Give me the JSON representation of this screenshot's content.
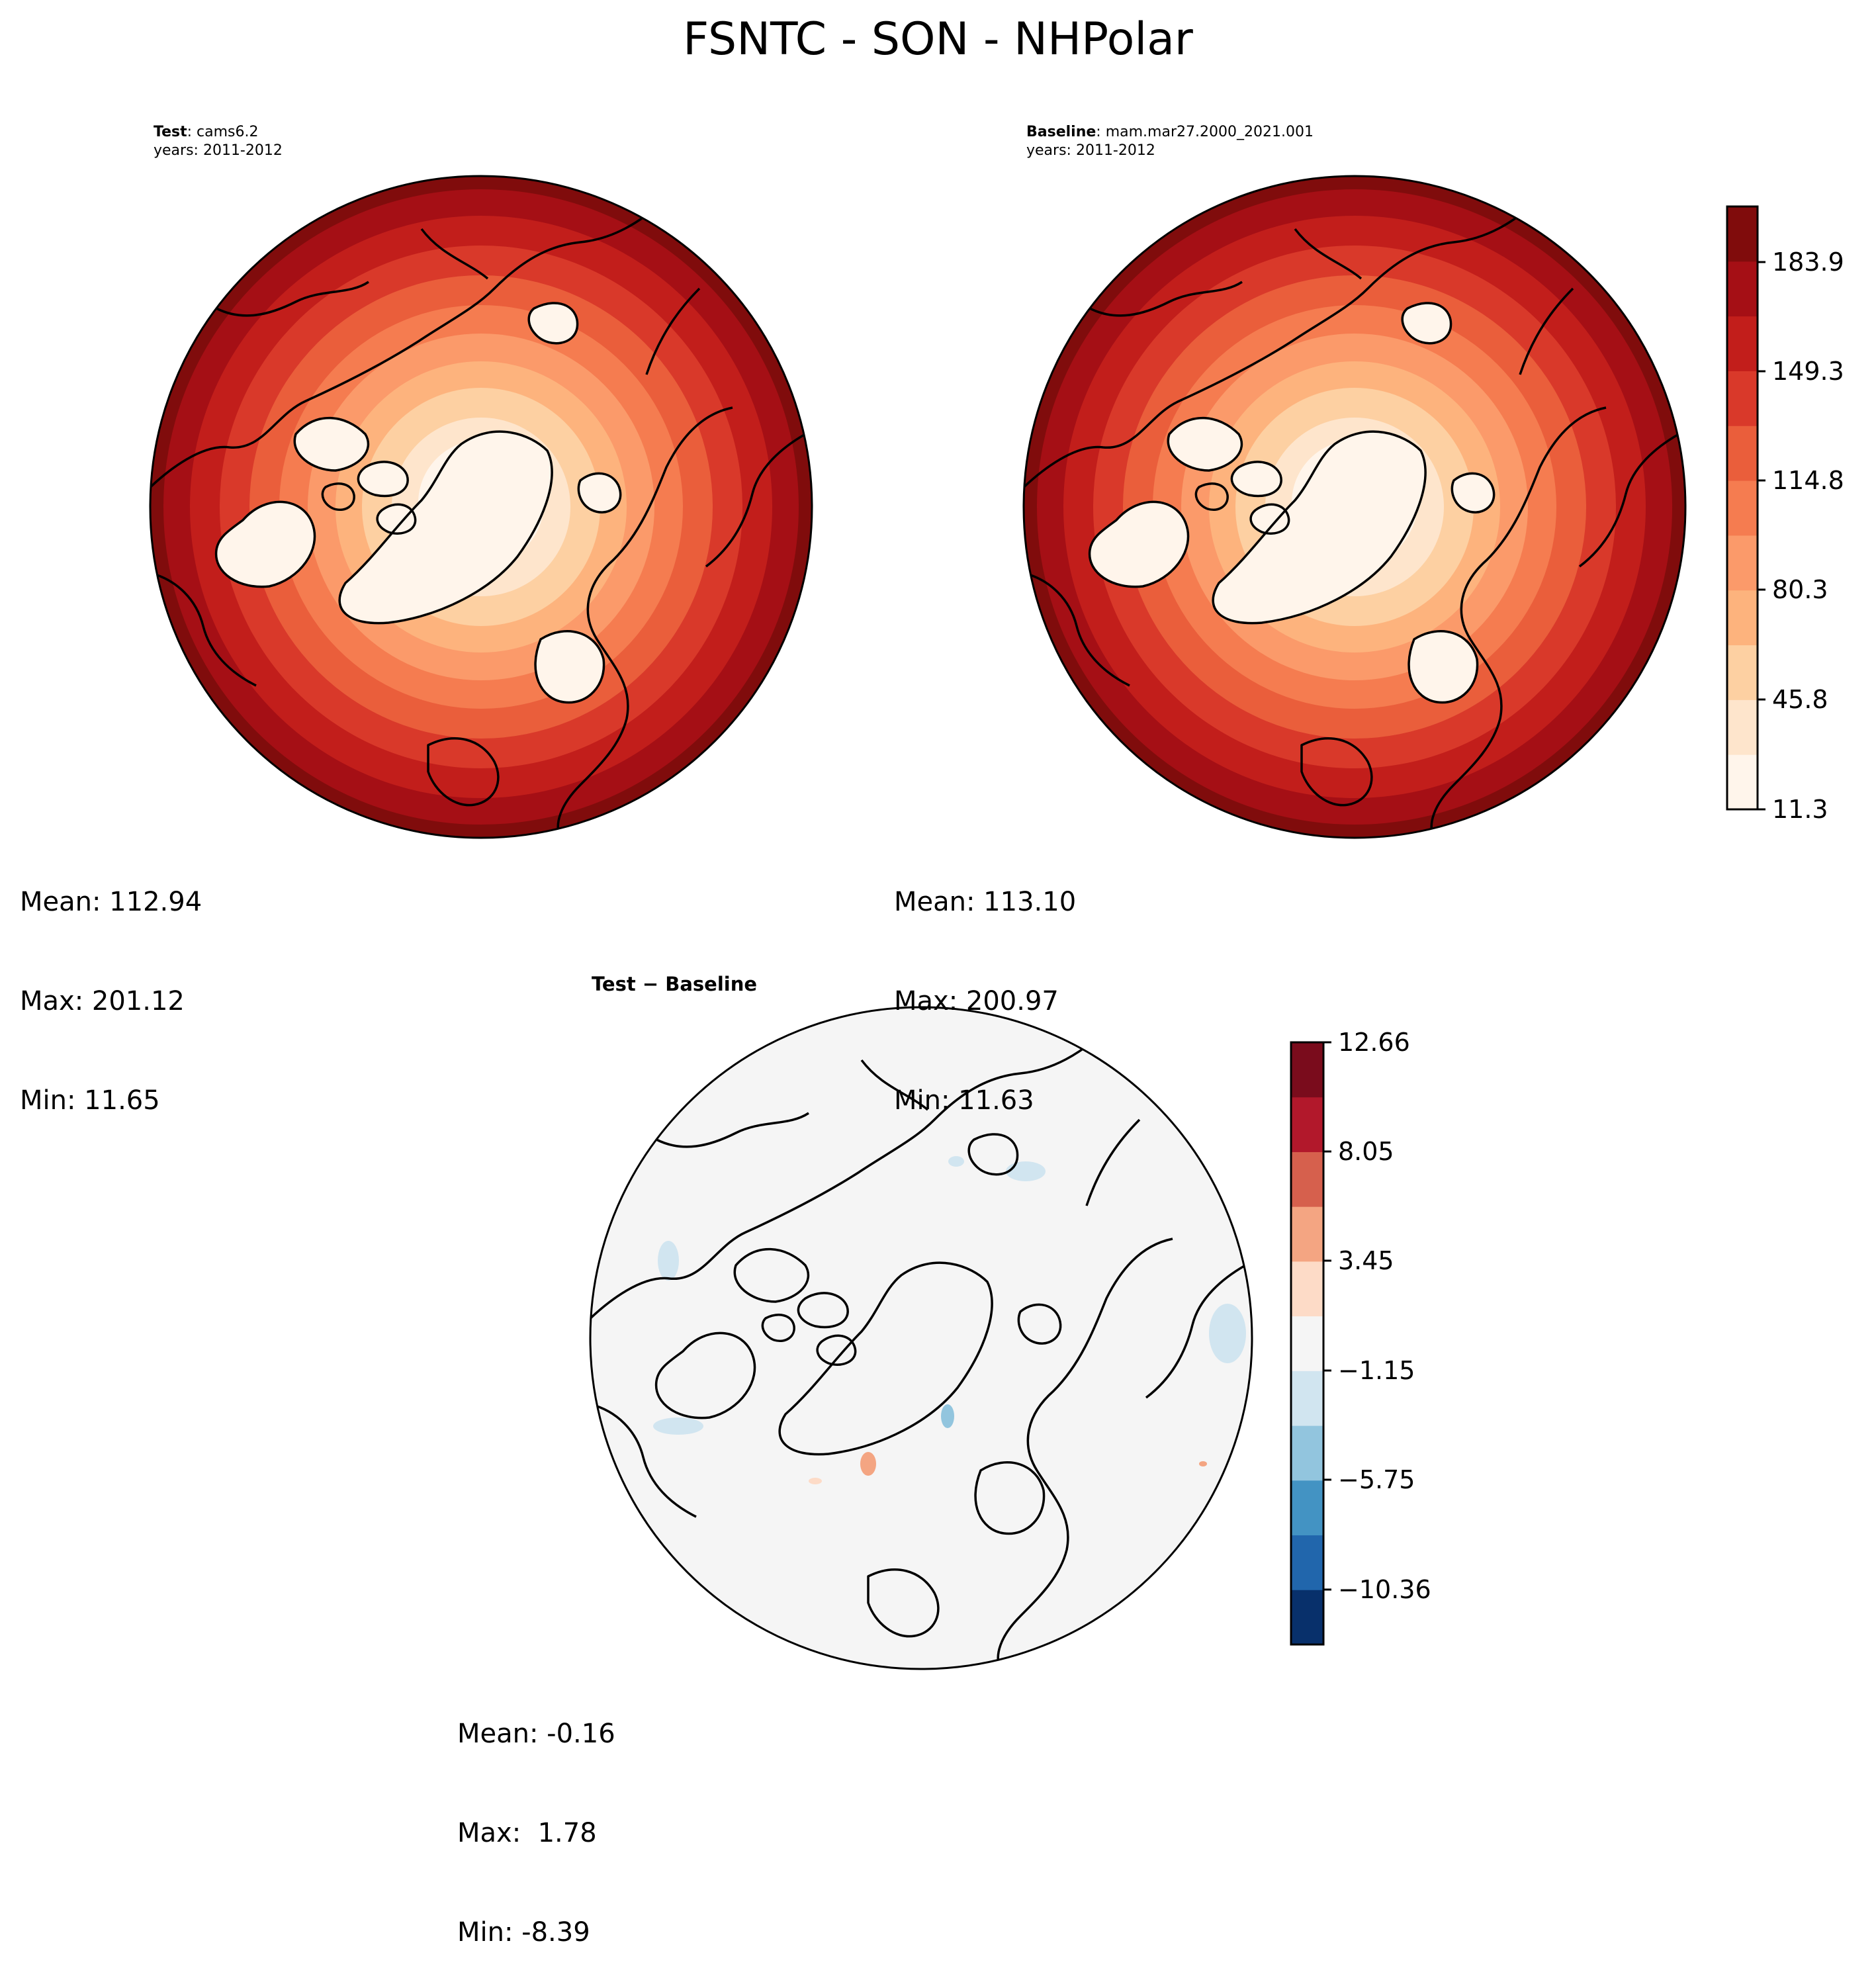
{
  "figure": {
    "title": "FSNTC - SON - NHPolar"
  },
  "panels": {
    "test": {
      "label_bold": "Test",
      "label_rest": ": cams6.2",
      "years": "years: 2011-2012",
      "stats": [
        "Mean: 112.94",
        "Max: 201.12",
        "Min: 11.65"
      ]
    },
    "baseline": {
      "label_bold": "Baseline",
      "label_rest": ": mam.mar27.2000_2021.001",
      "years": "years: 2011-2012",
      "stats": [
        "Mean: 113.10",
        "Max: 200.97",
        "Min: 11.63"
      ]
    },
    "difference": {
      "title": "Test − Baseline",
      "stats": [
        "Mean: -0.16",
        "Max:  1.78",
        "Min: -8.39"
      ]
    }
  },
  "colorbars": {
    "main": {
      "ticks": [
        "183.9",
        "149.3",
        "114.8",
        "80.3",
        "45.8",
        "11.3"
      ],
      "colors": [
        "#fff5eb",
        "#fee5cc",
        "#fdd0a2",
        "#fdb37d",
        "#fb9a6a",
        "#f57c50",
        "#ea5e3b",
        "#d9392a",
        "#c21e1b",
        "#a50f15",
        "#800c0c"
      ]
    },
    "diff": {
      "ticks": [
        "12.66",
        "8.05",
        "3.45",
        "−1.15",
        "−5.75",
        "−10.36"
      ],
      "colors": [
        "#08306b",
        "#2166ac",
        "#4393c3",
        "#92c5de",
        "#d1e5f0",
        "#f5f5f5",
        "#fddbc7",
        "#f4a582",
        "#d6604d",
        "#b2182b",
        "#7a0c1c"
      ]
    }
  }
}
